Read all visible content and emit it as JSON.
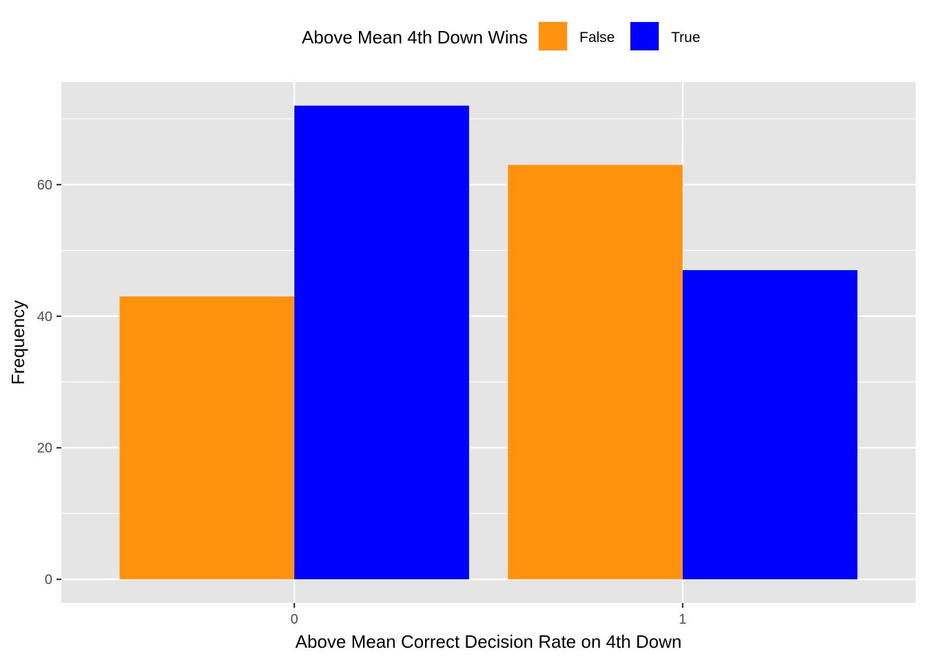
{
  "chart_data": {
    "type": "bar",
    "xlabel": "Above Mean Correct Decision Rate on 4th Down",
    "ylabel": "Frequency",
    "categories": [
      "0",
      "1"
    ],
    "series": [
      {
        "name": "False",
        "color": "#FF930E",
        "values": [
          43,
          63
        ]
      },
      {
        "name": "True",
        "color": "#0000FF",
        "values": [
          72,
          47
        ]
      }
    ],
    "ylim": [
      -3.6,
      75.6
    ],
    "yticks": [
      0,
      20,
      40,
      60
    ],
    "grid": true,
    "legend": {
      "title": "Above Mean 4th Down Wins",
      "position": "top"
    },
    "panel_color": "#E5E5E5",
    "grid_color": "#FFFFFF"
  }
}
